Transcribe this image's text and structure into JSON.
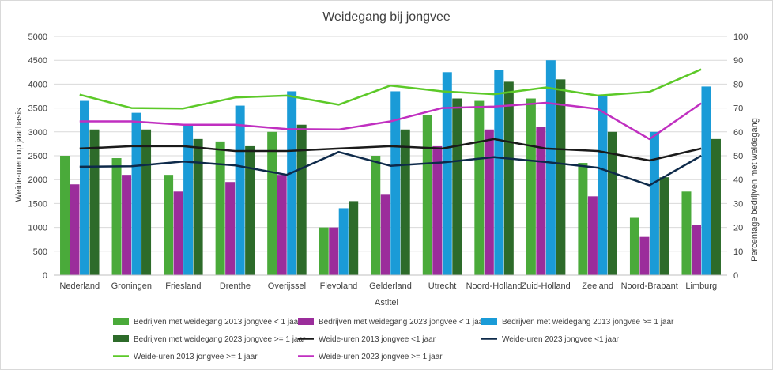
{
  "chart_data": {
    "type": "bar",
    "title": "Weidegang bij jongvee",
    "xlabel": "Astitel",
    "ylabel": "Weide-uren op jaarbasis",
    "y2label": "Percentage bedrijven met weidegang",
    "ylim": [
      0,
      5000
    ],
    "y2lim": [
      0,
      100
    ],
    "yticks": [
      "0",
      "500",
      "1000",
      "1500",
      "2000",
      "2500",
      "3000",
      "3500",
      "4000",
      "4500",
      "5000"
    ],
    "y2ticks": [
      "0",
      "10",
      "20",
      "30",
      "40",
      "50",
      "60",
      "70",
      "80",
      "90",
      "100"
    ],
    "grid": true,
    "legend_position": "bottom",
    "categories": [
      "Nederland",
      "Groningen",
      "Friesland",
      "Drenthe",
      "Overijssel",
      "Flevoland",
      "Gelderland",
      "Utrecht",
      "Noord-Holland",
      "Zuid-Holland",
      "Zeeland",
      "Noord-Brabant",
      "Limburg"
    ],
    "series": [
      {
        "name": "Bedrijven met weidegang  2013 jongvee < 1 jaar",
        "kind": "bar",
        "color": "#4aaa3a",
        "values": [
          2500,
          2450,
          2100,
          2800,
          3000,
          1000,
          2500,
          3350,
          3650,
          3700,
          2350,
          1200,
          1750
        ]
      },
      {
        "name": "Bedrijven met weidegang  2023 jongvee < 1 jaar",
        "kind": "bar",
        "color": "#9b2d9b",
        "values": [
          1900,
          2100,
          1750,
          1950,
          2100,
          1000,
          1700,
          2700,
          3050,
          3100,
          1650,
          800,
          1050
        ]
      },
      {
        "name": "Bedrijven met weidegang  2013 jongvee >= 1 jaar",
        "kind": "bar",
        "color": "#1a9bd7",
        "values": [
          3650,
          3400,
          3150,
          3550,
          3850,
          1400,
          3850,
          4250,
          4300,
          4500,
          3750,
          3000,
          3950
        ]
      },
      {
        "name": "Bedrijven met weidegang  2023 jongvee >= 1 jaar",
        "kind": "bar",
        "color": "#2d6b2a",
        "values": [
          3050,
          3050,
          2850,
          2700,
          3150,
          1550,
          3050,
          3700,
          4050,
          4100,
          3000,
          2050,
          2850
        ]
      },
      {
        "name": "Weide-uren 2013 jongvee <1 jaar",
        "kind": "line",
        "color": "#1a1a1a",
        "values": [
          2650,
          2700,
          2700,
          2600,
          2600,
          2650,
          2700,
          2650,
          2850,
          2650,
          2600,
          2400,
          2650
        ]
      },
      {
        "name": "Weide-uren 2023 jongvee <1 jaar",
        "kind": "line",
        "color": "#0e2a4a",
        "values": [
          2270,
          2280,
          2380,
          2300,
          2100,
          2580,
          2290,
          2360,
          2470,
          2370,
          2250,
          1880,
          2500
        ]
      },
      {
        "name": "Weide-uren 2013 jongvee >= 1 jaar",
        "kind": "line",
        "color": "#5cc928",
        "values": [
          3780,
          3500,
          3490,
          3720,
          3760,
          3570,
          3970,
          3850,
          3790,
          3930,
          3760,
          3840,
          4310
        ]
      },
      {
        "name": "Weide-uren 2023 jongvee >= 1 jaar",
        "kind": "line",
        "color": "#c02fc0",
        "values": [
          3220,
          3220,
          3150,
          3150,
          3060,
          3050,
          3220,
          3500,
          3530,
          3610,
          3480,
          2850,
          3600
        ]
      }
    ]
  }
}
